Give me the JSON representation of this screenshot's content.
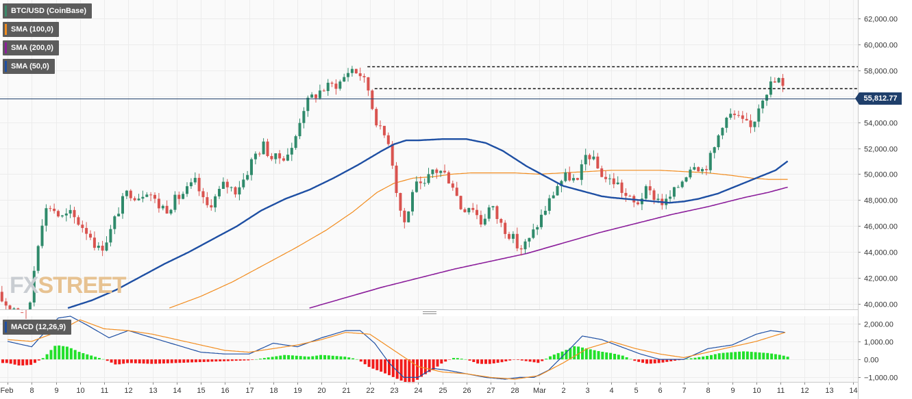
{
  "legends": {
    "instrument": {
      "label": "BTC/USD (CoinBase)",
      "color": "#3a8a6a"
    },
    "sma100": {
      "label": "SMA (100,0)",
      "color": "#f28c1e"
    },
    "sma200": {
      "label": "SMA (200,0)",
      "color": "#8b1e9b"
    },
    "sma50": {
      "label": "SMA (50,0)",
      "color": "#1e4fa3"
    },
    "macd": {
      "label": "MACD (12,26,9)",
      "color": "#1e4fa3"
    }
  },
  "watermark": {
    "part1": "FX",
    "part2": "STREET"
  },
  "last_price": {
    "label": "55,812.77",
    "value": 55812.77
  },
  "chart_data": {
    "type": "candlestick",
    "ylim": [
      39600,
      63400
    ],
    "macd_ylim": [
      -1250,
      2400
    ],
    "y_ticks": [
      {
        "v": 40000,
        "label": "40,000.00"
      },
      {
        "v": 42000,
        "label": "42,000.00"
      },
      {
        "v": 44000,
        "label": "44,000.00"
      },
      {
        "v": 46000,
        "label": "46,000.00"
      },
      {
        "v": 48000,
        "label": "48,000.00"
      },
      {
        "v": 50000,
        "label": "50,000.00"
      },
      {
        "v": 52000,
        "label": "52,000.00"
      },
      {
        "v": 54000,
        "label": "54,000.00"
      },
      {
        "v": 56000,
        "label": "56,000.00"
      },
      {
        "v": 58000,
        "label": "58,000.00"
      },
      {
        "v": 60000,
        "label": "60,000.00"
      },
      {
        "v": 62000,
        "label": "62,000.00"
      }
    ],
    "macd_ticks": [
      {
        "v": 2000,
        "label": "2,000.00"
      },
      {
        "v": 1000,
        "label": "1,000.00"
      },
      {
        "v": 0,
        "label": "0.00"
      },
      {
        "v": -1000,
        "label": "−1,000.00"
      }
    ],
    "x_ticks": [
      {
        "d": 7,
        "label": "Feb"
      },
      {
        "d": 8,
        "label": "8"
      },
      {
        "d": 9,
        "label": "9"
      },
      {
        "d": 10,
        "label": "10"
      },
      {
        "d": 11,
        "label": "11"
      },
      {
        "d": 12,
        "label": "12"
      },
      {
        "d": 13,
        "label": "13"
      },
      {
        "d": 14,
        "label": "14"
      },
      {
        "d": 15,
        "label": "15"
      },
      {
        "d": 16,
        "label": "16"
      },
      {
        "d": 17,
        "label": "17"
      },
      {
        "d": 18,
        "label": "18"
      },
      {
        "d": 19,
        "label": "19"
      },
      {
        "d": 20,
        "label": "20"
      },
      {
        "d": 21,
        "label": "21"
      },
      {
        "d": 22,
        "label": "22"
      },
      {
        "d": 23,
        "label": "23"
      },
      {
        "d": 24,
        "label": "24"
      },
      {
        "d": 25,
        "label": "25"
      },
      {
        "d": 26,
        "label": "26"
      },
      {
        "d": 27,
        "label": "27"
      },
      {
        "d": 28,
        "label": "28"
      },
      {
        "d": 29,
        "label": "Mar"
      },
      {
        "d": 30,
        "label": "2"
      },
      {
        "d": 31,
        "label": "3"
      },
      {
        "d": 32,
        "label": "4"
      },
      {
        "d": 33,
        "label": "5"
      },
      {
        "d": 34,
        "label": "6"
      },
      {
        "d": 35,
        "label": "7"
      },
      {
        "d": 36,
        "label": "8"
      },
      {
        "d": 37,
        "label": "9"
      },
      {
        "d": 38,
        "label": "10"
      },
      {
        "d": 39,
        "label": "11"
      },
      {
        "d": 40,
        "label": "12"
      },
      {
        "d": 41,
        "label": "13"
      },
      {
        "d": 42,
        "label": "14"
      }
    ],
    "resistance_levels": [
      {
        "value": 58300,
        "from_day": 21.9,
        "to_day": 42.5
      },
      {
        "value": 56600,
        "from_day": 22.2,
        "to_day": 42.5
      }
    ],
    "series": [
      {
        "name": "BTC/USD (CoinBase)",
        "kind": "candles",
        "ohlc_anchor_days": [
          6.6,
          7.0,
          7.4,
          7.8,
          8.2,
          8.5,
          8.8,
          9.2,
          9.6,
          10.0,
          10.4,
          10.8,
          11.2,
          11.6,
          12.0,
          12.4,
          12.8,
          13.2,
          13.6,
          14.0,
          14.4,
          14.8,
          15.2,
          15.6,
          16.0,
          16.4,
          16.8,
          17.2,
          17.6,
          18.0,
          18.4,
          18.8,
          19.2,
          19.6,
          20.0,
          20.4,
          20.8,
          21.2,
          21.6,
          22.0,
          22.1,
          22.4,
          22.8,
          23.2,
          23.5,
          23.8,
          24.2,
          24.6,
          25.0,
          25.4,
          25.8,
          26.2,
          26.6,
          27.0,
          27.4,
          27.8,
          28.2,
          28.6,
          29.0,
          29.4,
          29.8,
          30.2,
          30.6,
          31.0,
          31.4,
          31.8,
          32.2,
          32.6,
          33.0,
          33.4,
          33.8,
          34.2,
          34.6,
          35.0,
          35.4,
          35.8,
          36.2,
          36.6,
          37.0,
          37.4,
          37.8,
          38.2,
          38.6,
          39.0,
          39.2
        ],
        "ohlc_anchor_close": [
          40600,
          39900,
          39700,
          38200,
          44200,
          47100,
          47600,
          46600,
          46900,
          46200,
          45400,
          44100,
          45300,
          47300,
          48700,
          48300,
          48900,
          47600,
          47400,
          48100,
          48700,
          49400,
          47400,
          48200,
          49300,
          48700,
          49700,
          51400,
          52200,
          51100,
          51400,
          51900,
          55000,
          55900,
          56500,
          56800,
          57100,
          58200,
          57700,
          56300,
          55200,
          53400,
          52600,
          47600,
          46000,
          49200,
          48800,
          50300,
          50200,
          49400,
          47300,
          47700,
          46300,
          47600,
          46200,
          45400,
          44200,
          44900,
          46400,
          47800,
          49300,
          49900,
          49300,
          51800,
          50500,
          49600,
          49400,
          48300,
          47600,
          48700,
          48300,
          47700,
          48600,
          49800,
          51000,
          50300,
          51600,
          54000,
          54600,
          54000,
          53500,
          55900,
          56900,
          57300,
          55813
        ]
      },
      {
        "name": "SMA (50,0)",
        "kind": "line",
        "days": [
          9.5,
          10.5,
          11.5,
          12.5,
          13.5,
          14.5,
          15.5,
          16.5,
          17.5,
          18.5,
          19.5,
          20.5,
          21.5,
          22.5,
          23.0,
          23.5,
          24.0,
          25.0,
          26.0,
          26.8,
          27.5,
          28.0,
          28.5,
          29.0,
          29.5,
          30.0,
          31.0,
          31.6,
          32.0,
          32.6,
          33.2,
          33.8,
          34.4,
          35.0,
          35.6,
          36.4,
          37.2,
          38.0,
          38.8,
          39.3
        ],
        "values": [
          39700,
          40300,
          41100,
          42100,
          43100,
          44000,
          45000,
          46000,
          47200,
          48100,
          48800,
          49700,
          50700,
          51800,
          52300,
          52600,
          52600,
          52700,
          52700,
          52400,
          51800,
          51200,
          50600,
          50100,
          49600,
          49100,
          48600,
          48300,
          48200,
          48100,
          48000,
          47900,
          47800,
          47900,
          48100,
          48500,
          49100,
          49700,
          50300,
          51000
        ]
      },
      {
        "name": "SMA (100,0)",
        "kind": "line",
        "days": [
          13.7,
          15.0,
          16.3,
          17.6,
          18.9,
          20.2,
          21.3,
          22.3,
          23.0,
          23.8,
          24.6,
          25.4,
          26.2,
          27.0,
          28.0,
          29.0,
          30.0,
          31.0,
          32.0,
          33.0,
          34.0,
          35.0,
          36.0,
          37.0,
          37.8,
          38.5,
          39.3
        ],
        "values": [
          39700,
          40600,
          41700,
          43000,
          44300,
          45700,
          47100,
          48600,
          49300,
          49700,
          49800,
          50000,
          50100,
          50100,
          50100,
          50000,
          50100,
          50200,
          50300,
          50300,
          50300,
          50200,
          50100,
          49900,
          49700,
          49600,
          49600
        ]
      },
      {
        "name": "SMA (200,0)",
        "kind": "line",
        "days": [
          19.5,
          21.0,
          22.5,
          24.0,
          25.5,
          27.0,
          28.5,
          30.0,
          31.5,
          33.0,
          34.5,
          36.0,
          37.5,
          38.5,
          39.3
        ],
        "values": [
          39700,
          40500,
          41300,
          42000,
          42700,
          43300,
          43900,
          44700,
          45500,
          46200,
          46900,
          47500,
          48200,
          48600,
          49000
        ]
      },
      {
        "name": "MACD (12,26,9)",
        "kind": "macd",
        "macd_days": [
          7.0,
          8.0,
          8.6,
          9.1,
          9.6,
          10.3,
          11.2,
          12.0,
          13.0,
          14.0,
          15.0,
          16.0,
          17.0,
          18.0,
          19.0,
          20.0,
          21.0,
          21.6,
          22.2,
          22.8,
          23.4,
          24.0,
          24.6,
          25.2,
          26.0,
          26.8,
          27.6,
          28.2,
          28.8,
          29.4,
          30.0,
          30.8,
          31.6,
          32.4,
          33.2,
          34.0,
          35.0,
          36.0,
          37.0,
          38.0,
          38.6,
          39.2
        ],
        "macd_values": [
          1000,
          700,
          1600,
          2300,
          2400,
          1900,
          1200,
          1600,
          1200,
          800,
          400,
          300,
          300,
          900,
          700,
          1200,
          1600,
          1600,
          900,
          -200,
          -1000,
          -1000,
          -500,
          -600,
          -800,
          -1000,
          -1100,
          -1000,
          -1000,
          -600,
          200,
          1300,
          1100,
          700,
          300,
          0,
          0,
          600,
          800,
          1400,
          1600,
          1500
        ],
        "signal_days": [
          7.0,
          8.0,
          9.0,
          10.0,
          11.0,
          12.0,
          13.0,
          14.0,
          15.0,
          16.0,
          17.0,
          18.0,
          19.0,
          20.0,
          21.0,
          22.0,
          23.0,
          24.0,
          25.0,
          26.0,
          27.0,
          28.0,
          29.0,
          30.0,
          31.0,
          32.0,
          33.0,
          34.0,
          35.0,
          36.0,
          37.0,
          38.0,
          39.2
        ],
        "signal_values": [
          1100,
          1000,
          1500,
          2200,
          1700,
          1600,
          1400,
          1100,
          800,
          500,
          400,
          600,
          800,
          1100,
          1500,
          1400,
          500,
          -400,
          -700,
          -800,
          -1000,
          -1100,
          -900,
          -200,
          600,
          1000,
          600,
          300,
          100,
          400,
          700,
          1000,
          1500
        ],
        "hist_days": [
          7.0,
          7.5,
          8.0,
          8.5,
          9.0,
          9.5,
          10.0,
          10.5,
          11.0,
          11.5,
          12.0,
          13.0,
          14.0,
          15.0,
          16.0,
          17.0,
          18.0,
          18.5,
          19.0,
          19.5,
          20.0,
          21.0,
          21.5,
          22.0,
          22.5,
          23.0,
          23.5,
          23.8,
          24.2,
          24.6,
          25.0,
          25.5,
          26.0,
          26.5,
          27.0,
          27.5,
          28.0,
          28.5,
          29.0,
          29.5,
          30.0,
          30.5,
          31.0,
          31.5,
          32.0,
          32.5,
          33.0,
          33.5,
          34.0,
          34.5,
          35.0,
          35.5,
          36.0,
          36.5,
          37.0,
          37.5,
          38.0,
          38.5,
          39.0,
          39.3
        ],
        "hist_values": [
          -200,
          -350,
          -300,
          100,
          800,
          700,
          400,
          200,
          0,
          -300,
          -200,
          -250,
          -200,
          -150,
          -100,
          -50,
          150,
          250,
          200,
          150,
          250,
          150,
          0,
          -450,
          -700,
          -1000,
          -1300,
          -1300,
          -900,
          -600,
          -200,
          100,
          0,
          -250,
          -250,
          -150,
          0,
          -100,
          -200,
          200,
          450,
          750,
          600,
          450,
          350,
          200,
          -100,
          -250,
          -200,
          -100,
          0,
          100,
          200,
          350,
          400,
          450,
          400,
          350,
          250,
          150
        ]
      }
    ]
  }
}
